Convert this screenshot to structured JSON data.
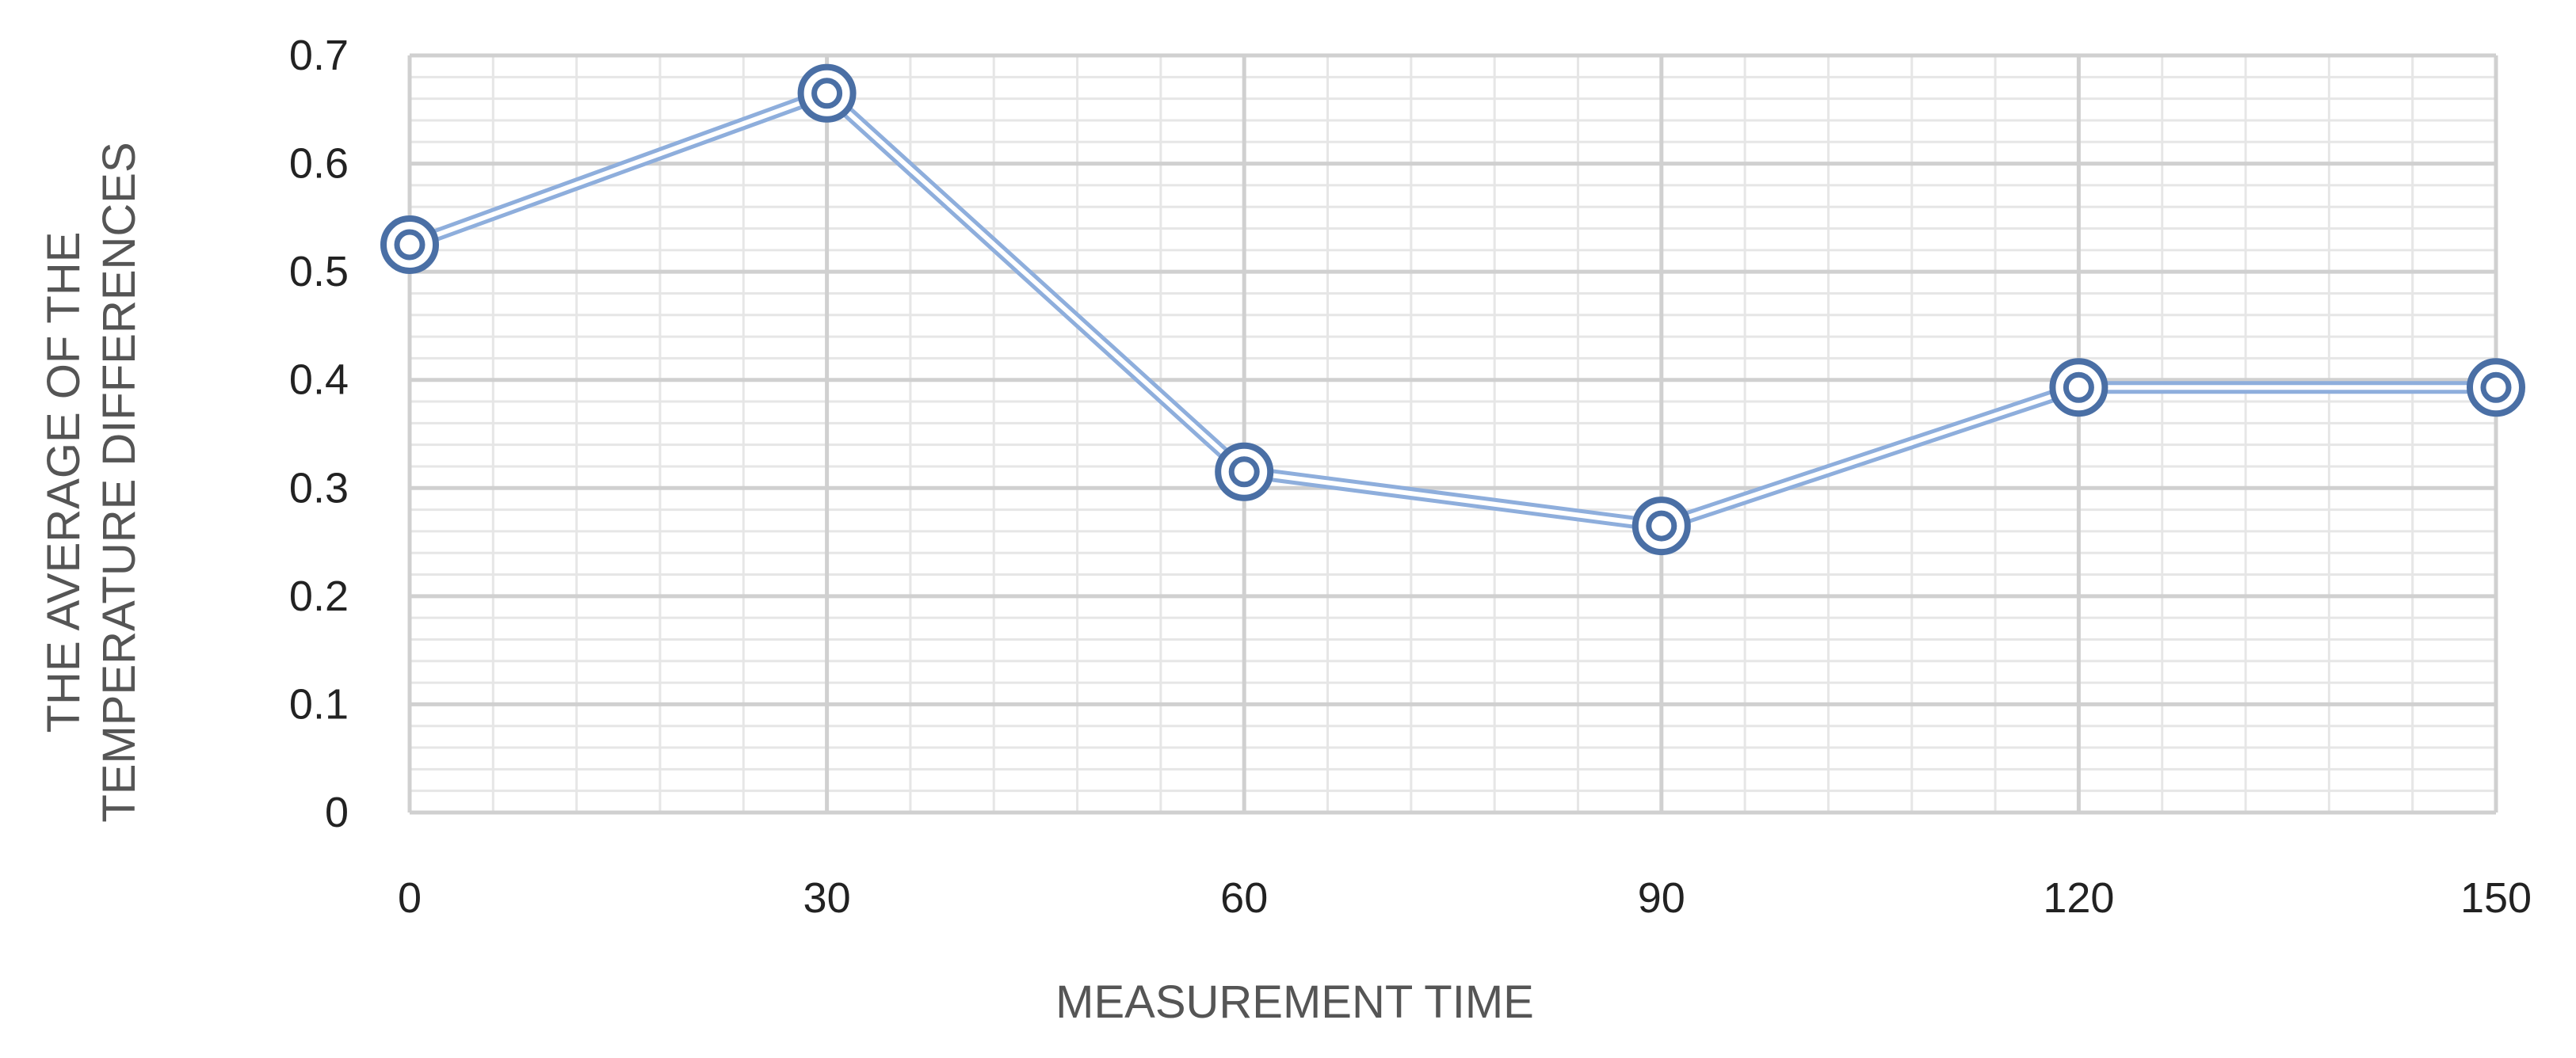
{
  "chart_data": {
    "type": "line",
    "title": "",
    "xlabel": "MEASUREMENT TIME",
    "ylabel_lines": [
      "THE AVERAGE OF THE",
      "TEMPERATURE DIFFERENCES"
    ],
    "x": [
      0,
      30,
      60,
      90,
      120,
      150
    ],
    "xlim": [
      0,
      150
    ],
    "ylim": [
      0,
      0.7
    ],
    "x_ticks": [
      0,
      30,
      60,
      90,
      120,
      150
    ],
    "y_ticks": [
      0,
      0.1,
      0.2,
      0.3,
      0.4,
      0.5,
      0.6,
      0.7
    ],
    "x_tick_labels": [
      "0",
      "30",
      "60",
      "90",
      "120",
      "150"
    ],
    "y_tick_labels": [
      "0",
      "0.1",
      "0.2",
      "0.3",
      "0.4",
      "0.5",
      "0.6",
      "0.7"
    ],
    "grid": true,
    "legend": "none",
    "series": [
      {
        "values": [
          0.525,
          0.665,
          0.315,
          0.265,
          0.393,
          0.393
        ],
        "color": "#4a6fa5",
        "line_color": "#8eaedc",
        "marker": "double-circle"
      }
    ]
  }
}
